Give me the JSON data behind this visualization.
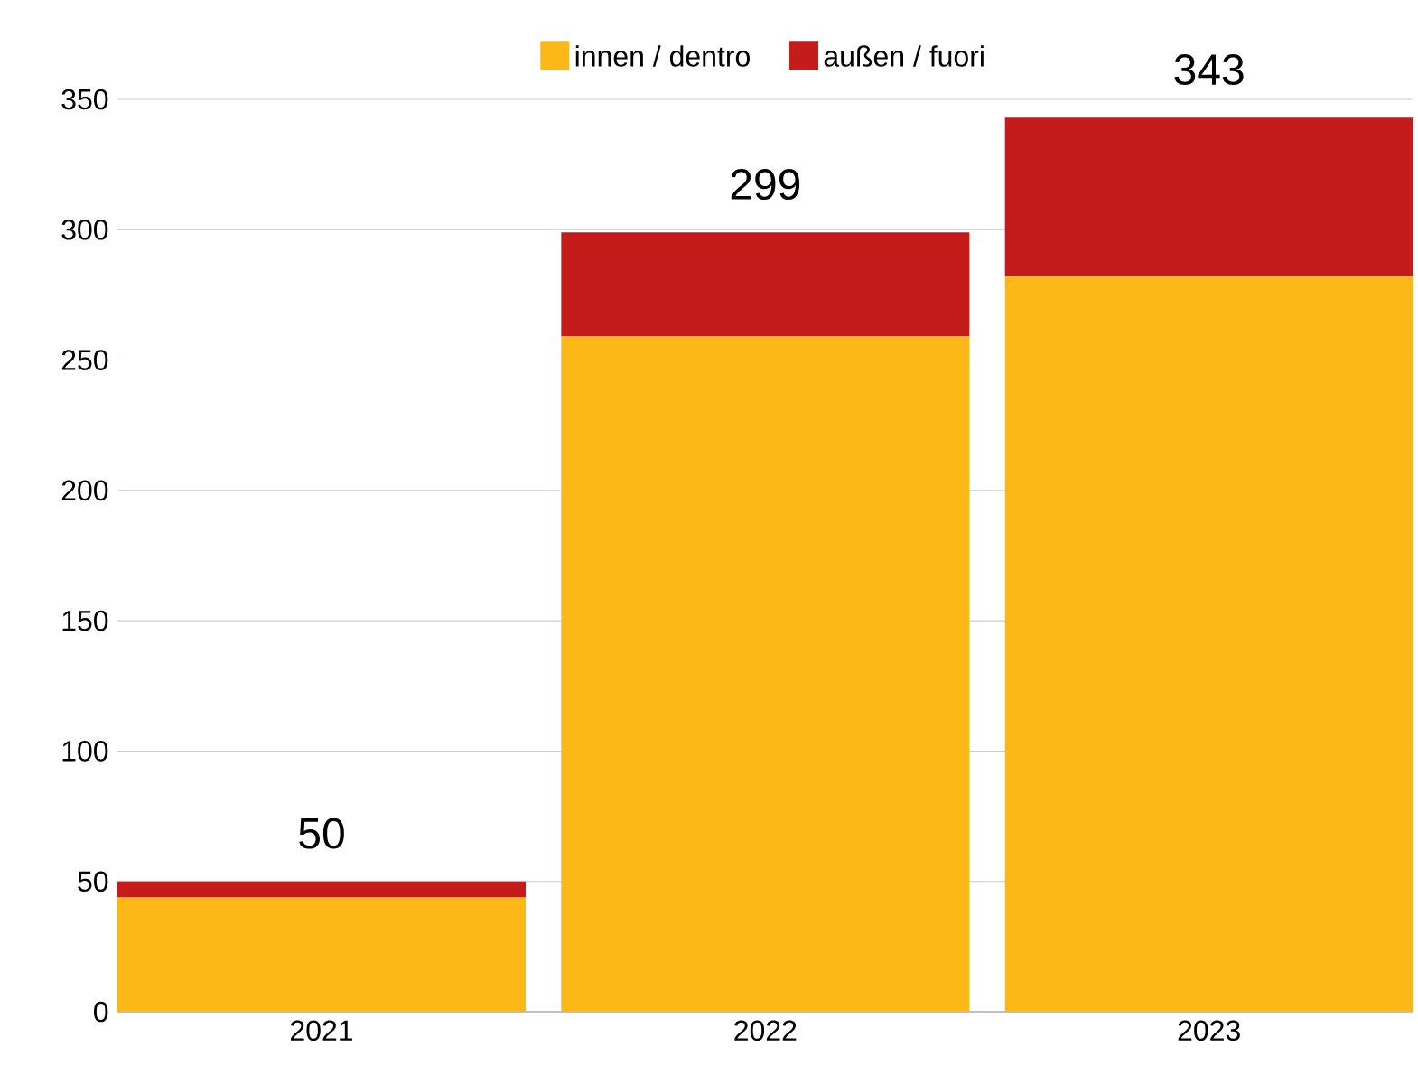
{
  "chart_data": {
    "type": "bar",
    "stacked": true,
    "categories": [
      "2021",
      "2022",
      "2023"
    ],
    "series": [
      {
        "name": "innen / dentro",
        "color": "#fbb817",
        "values": [
          44,
          259,
          282
        ]
      },
      {
        "name": "außen / fuori",
        "color": "#c61b1b",
        "values": [
          6,
          40,
          61
        ]
      }
    ],
    "totals": [
      "50",
      "299",
      "343"
    ],
    "ylim": [
      0,
      350
    ],
    "yticks": [
      0,
      50,
      100,
      150,
      200,
      250,
      300,
      350
    ],
    "grid": "y",
    "legend": "top"
  }
}
